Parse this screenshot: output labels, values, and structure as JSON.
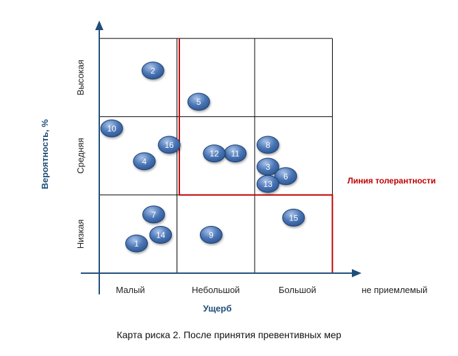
{
  "chart_data": {
    "type": "scatter",
    "title": "",
    "xlabel": "Ущерб",
    "ylabel": "Вероятность, %",
    "x_categories": [
      "Малый",
      "Небольшой",
      "Большой",
      "не приемлемый"
    ],
    "y_categories": [
      "Низкая",
      "Средняя",
      "Высокая"
    ],
    "xlim": [
      0,
      3
    ],
    "ylim": [
      0,
      3
    ],
    "grid": true,
    "points": [
      {
        "label": "1",
        "x": 0.48,
        "y": 0.38
      },
      {
        "label": "2",
        "x": 0.69,
        "y": 2.59
      },
      {
        "label": "3",
        "x": 2.17,
        "y": 1.36
      },
      {
        "label": "4",
        "x": 0.58,
        "y": 1.43
      },
      {
        "label": "5",
        "x": 1.28,
        "y": 2.19
      },
      {
        "label": "6",
        "x": 2.4,
        "y": 1.24
      },
      {
        "label": "7",
        "x": 0.7,
        "y": 0.75
      },
      {
        "label": "8",
        "x": 2.17,
        "y": 1.64
      },
      {
        "label": "9",
        "x": 1.44,
        "y": 0.49
      },
      {
        "label": "10",
        "x": 0.16,
        "y": 1.85
      },
      {
        "label": "11",
        "x": 1.75,
        "y": 1.53
      },
      {
        "label": "12",
        "x": 1.48,
        "y": 1.53
      },
      {
        "label": "13",
        "x": 2.17,
        "y": 1.14
      },
      {
        "label": "14",
        "x": 0.79,
        "y": 0.49
      },
      {
        "label": "15",
        "x": 2.5,
        "y": 0.71
      },
      {
        "label": "16",
        "x": 0.9,
        "y": 1.64
      }
    ],
    "tolerance_line": {
      "label": "Линия толерантности",
      "points": [
        [
          1.03,
          3
        ],
        [
          1.03,
          1
        ],
        [
          3,
          1
        ],
        [
          3,
          0
        ]
      ]
    },
    "caption": "Карта риска 2. После принятия превентивных мер"
  },
  "colors": {
    "axis": "#1f4e79",
    "grid": "#000000",
    "tolerance": "#c00000",
    "bubble_light": "#8fb0dd",
    "bubble_dark": "#2c5590",
    "bubble_stroke": "#1d3f6f"
  }
}
